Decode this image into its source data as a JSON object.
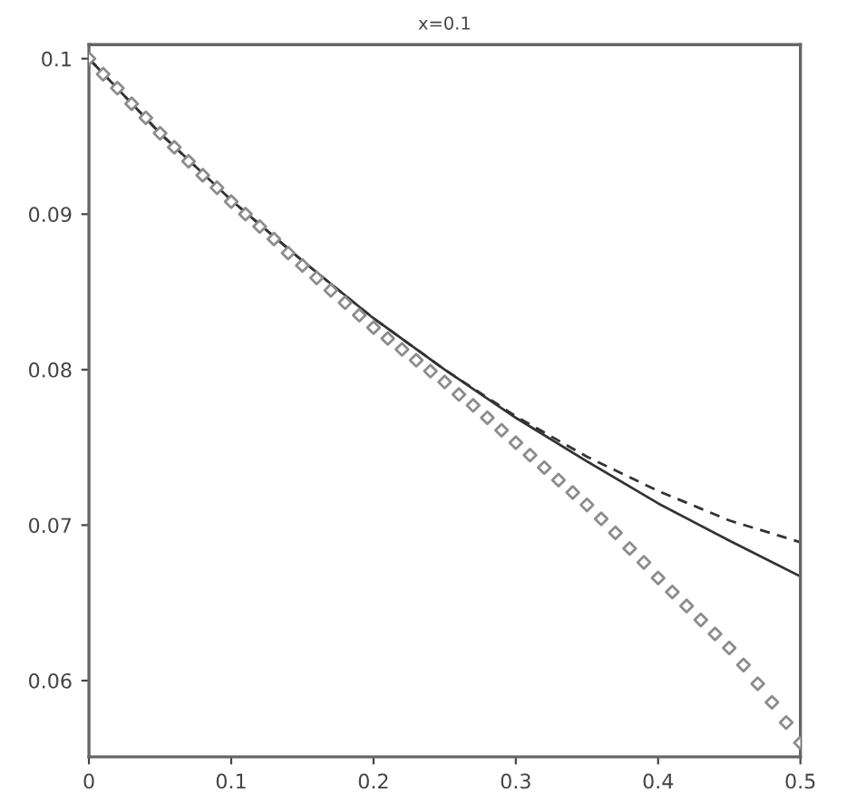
{
  "chart_data": {
    "type": "line",
    "title": "x=0.1",
    "xlim": [
      0,
      0.5
    ],
    "ylim": [
      0.0551,
      0.1009
    ],
    "xticks": [
      0,
      0.1,
      0.2,
      0.3,
      0.4,
      0.5
    ],
    "yticks": [
      0.06,
      0.07,
      0.08,
      0.09,
      0.1
    ],
    "grid": false,
    "legend": false,
    "series": [
      {
        "line_style": "solid",
        "marker": "none",
        "color": "#333333",
        "x": [
          0,
          0.05,
          0.1,
          0.15,
          0.2,
          0.25,
          0.3,
          0.35,
          0.4,
          0.45,
          0.5
        ],
        "values": [
          0.1,
          0.0952,
          0.0909,
          0.087,
          0.0833,
          0.08,
          0.0769,
          0.0741,
          0.0714,
          0.069,
          0.0667
        ]
      },
      {
        "line_style": "dashed",
        "marker": "none",
        "color": "#333333",
        "x": [
          0,
          0.05,
          0.1,
          0.15,
          0.2,
          0.25,
          0.3,
          0.35,
          0.4,
          0.45,
          0.5
        ],
        "values": [
          0.1,
          0.0952,
          0.0909,
          0.087,
          0.0833,
          0.08,
          0.077,
          0.0744,
          0.0722,
          0.0703,
          0.0689
        ]
      },
      {
        "type": "scatter",
        "marker": "diamond",
        "color": "#8c8c8c",
        "x": [
          0,
          0.01,
          0.02,
          0.03,
          0.04,
          0.05,
          0.06,
          0.07,
          0.08,
          0.09,
          0.1,
          0.11,
          0.12,
          0.13,
          0.14,
          0.15,
          0.16,
          0.17,
          0.18,
          0.19,
          0.2,
          0.21,
          0.22,
          0.23,
          0.24,
          0.25,
          0.26,
          0.27,
          0.28,
          0.29,
          0.3,
          0.31,
          0.32,
          0.33,
          0.34,
          0.35,
          0.36,
          0.37,
          0.38,
          0.39,
          0.4,
          0.41,
          0.42,
          0.43,
          0.44,
          0.45,
          0.46,
          0.47,
          0.48,
          0.49,
          0.5
        ],
        "values": [
          0.1,
          0.099,
          0.0981,
          0.0971,
          0.0962,
          0.0952,
          0.0943,
          0.0934,
          0.0925,
          0.0917,
          0.0908,
          0.09,
          0.0892,
          0.0884,
          0.0875,
          0.0867,
          0.0859,
          0.0851,
          0.0843,
          0.0835,
          0.0827,
          0.082,
          0.0813,
          0.0806,
          0.0799,
          0.0792,
          0.0784,
          0.0777,
          0.0769,
          0.0761,
          0.0753,
          0.0745,
          0.0737,
          0.0729,
          0.0721,
          0.0713,
          0.0704,
          0.0695,
          0.0685,
          0.0676,
          0.0666,
          0.0657,
          0.0648,
          0.0639,
          0.063,
          0.0621,
          0.061,
          0.0598,
          0.0586,
          0.0573,
          0.056
        ]
      }
    ]
  }
}
